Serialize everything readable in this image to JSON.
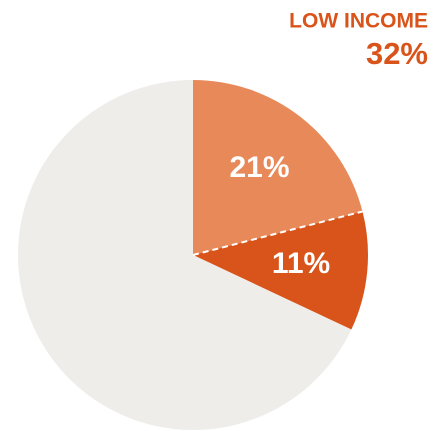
{
  "chart_data": {
    "type": "pie",
    "title": "LOW INCOME",
    "subtitle": "32%",
    "values": [
      21,
      11,
      68
    ],
    "value_labels": [
      "21%",
      "11%",
      null
    ],
    "colors": [
      "#e8895a",
      "#d9541a",
      "#efedea"
    ],
    "title_color": "#d9541a"
  }
}
